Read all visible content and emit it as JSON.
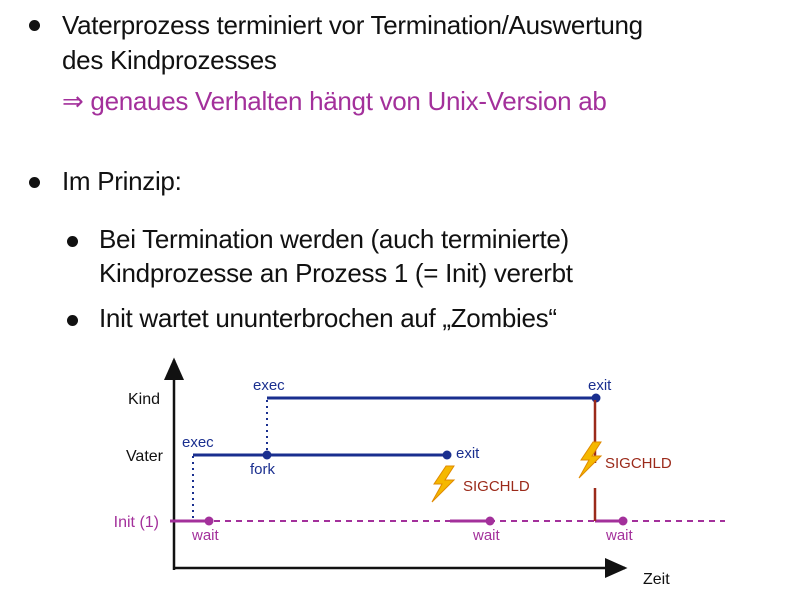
{
  "bullets": [
    {
      "line1": "Vaterprozess terminiert vor Termination/Auswertung",
      "line2": "des Kindprozesses",
      "note": "⇒ genaues Verhalten hängt von Unix-Version ab"
    },
    {
      "text": "Im Prinzip:"
    }
  ],
  "sub_bullets": [
    {
      "line1": "Bei Termination werden (auch terminierte)",
      "line2": "Kindprozesse an Prozess 1 (= Init) vererbt"
    },
    {
      "line1": "Init wartet ununterbrochen auf „Zombies“"
    }
  ],
  "diagram": {
    "rows": {
      "kind": "Kind",
      "vater": "Vater",
      "init": "Init (1)"
    },
    "x_axis_label": "Zeit",
    "events": {
      "kind_exec": "exec",
      "kind_exit": "exit",
      "vater_exec": "exec",
      "vater_fork": "fork",
      "vater_exit": "exit",
      "wait1": "wait",
      "wait2": "wait",
      "wait3": "wait",
      "signal1": "SIGCHLD",
      "signal2": "SIGCHLD"
    },
    "icons": [
      "lightning-icon",
      "lightning-icon"
    ],
    "colors": {
      "process": "#1a2f8f",
      "init": "#a3309b",
      "signal": "#9b2a1a",
      "lightning": "#f5b800"
    }
  }
}
